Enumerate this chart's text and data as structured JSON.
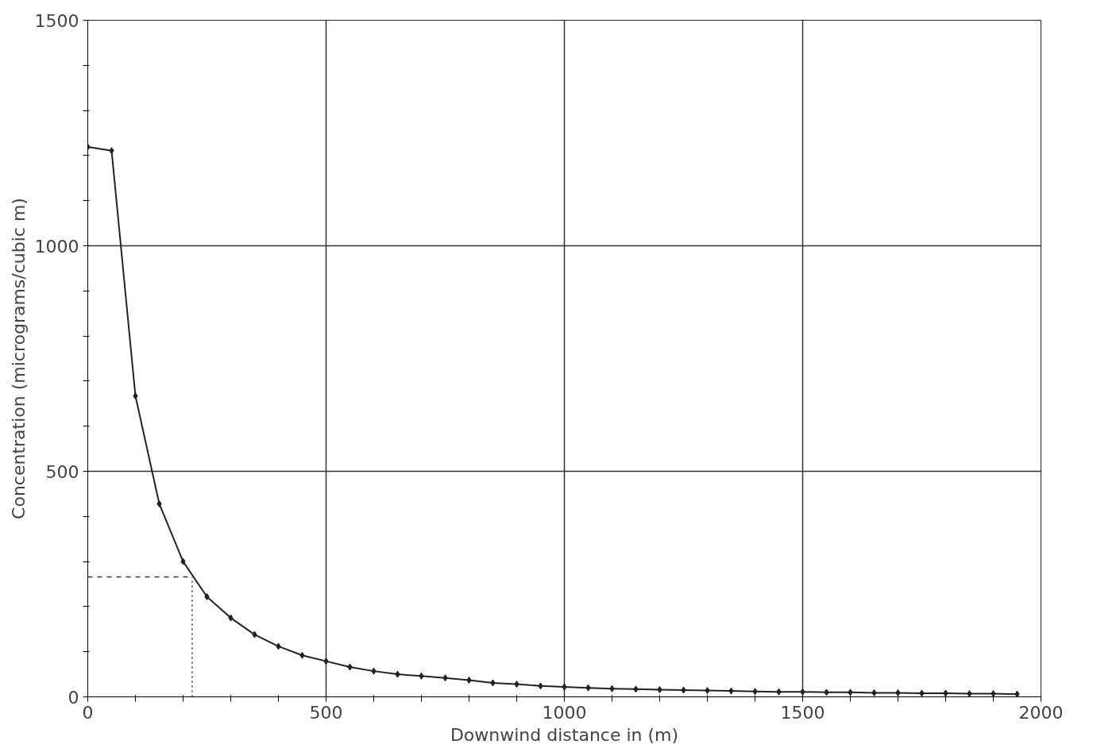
{
  "chart_data": {
    "type": "line",
    "xlabel": "Downwind distance in (m)",
    "ylabel": "Concentration (micrograms/cubic m)",
    "x": [
      0,
      50,
      100,
      150,
      200,
      250,
      300,
      350,
      400,
      450,
      500,
      550,
      600,
      650,
      700,
      750,
      800,
      850,
      900,
      950,
      1000,
      1050,
      1100,
      1150,
      1200,
      1250,
      1300,
      1350,
      1400,
      1450,
      1500,
      1550,
      1600,
      1650,
      1700,
      1750,
      1800,
      1850,
      1900,
      1950
    ],
    "series": [
      {
        "color": "#222222",
        "values": [
          1219,
          1211,
          667,
          428,
          300,
          222,
          175,
          138,
          112,
          92,
          79,
          66,
          57,
          50,
          46,
          42,
          37,
          31,
          28,
          24,
          22,
          20,
          18,
          17,
          16,
          15,
          14,
          13,
          12,
          11,
          11,
          10,
          10,
          9,
          9,
          8,
          8,
          7,
          7,
          6
        ]
      }
    ],
    "xlim": [
      0,
      2000
    ],
    "ylim": [
      0,
      1500
    ],
    "xticks": [
      0,
      {
        "value": 100,
        "label": null
      },
      {
        "value": 200,
        "label": null
      },
      {
        "value": 300,
        "label": null
      },
      {
        "value": 400,
        "label": null
      },
      500,
      {
        "value": 600,
        "label": null
      },
      {
        "value": 700,
        "label": null
      },
      {
        "value": 800,
        "label": null
      },
      {
        "value": 900,
        "label": null
      },
      1000,
      {
        "value": 1100,
        "label": null
      },
      {
        "value": 1200,
        "label": null
      },
      {
        "value": 1300,
        "label": null
      },
      {
        "value": 1400,
        "label": null
      },
      1500,
      {
        "value": 1600,
        "label": null
      },
      {
        "value": 1700,
        "label": null
      },
      {
        "value": 1800,
        "label": null
      },
      {
        "value": 1900,
        "label": null
      },
      2000
    ],
    "yticks": [
      0,
      {
        "value": 100,
        "label": null
      },
      {
        "value": 200,
        "label": null
      },
      {
        "value": 300,
        "label": null
      },
      {
        "value": 400,
        "label": null
      },
      500,
      {
        "value": 600,
        "label": null
      },
      {
        "value": 700,
        "label": null
      },
      {
        "value": 800,
        "label": null
      },
      {
        "value": 900,
        "label": null
      },
      1000,
      {
        "value": 1100,
        "label": null
      },
      {
        "value": 1200,
        "label": null
      },
      {
        "value": 1300,
        "label": null
      },
      {
        "value": 1400,
        "label": null
      },
      1500
    ],
    "ref_lines": [
      {
        "axis": "y",
        "value": 266,
        "line_style": "dashed"
      },
      {
        "axis": "x",
        "value": 219,
        "line_style": "dotted"
      }
    ],
    "grid": true,
    "marker": "diamond",
    "line_style": "solid"
  }
}
